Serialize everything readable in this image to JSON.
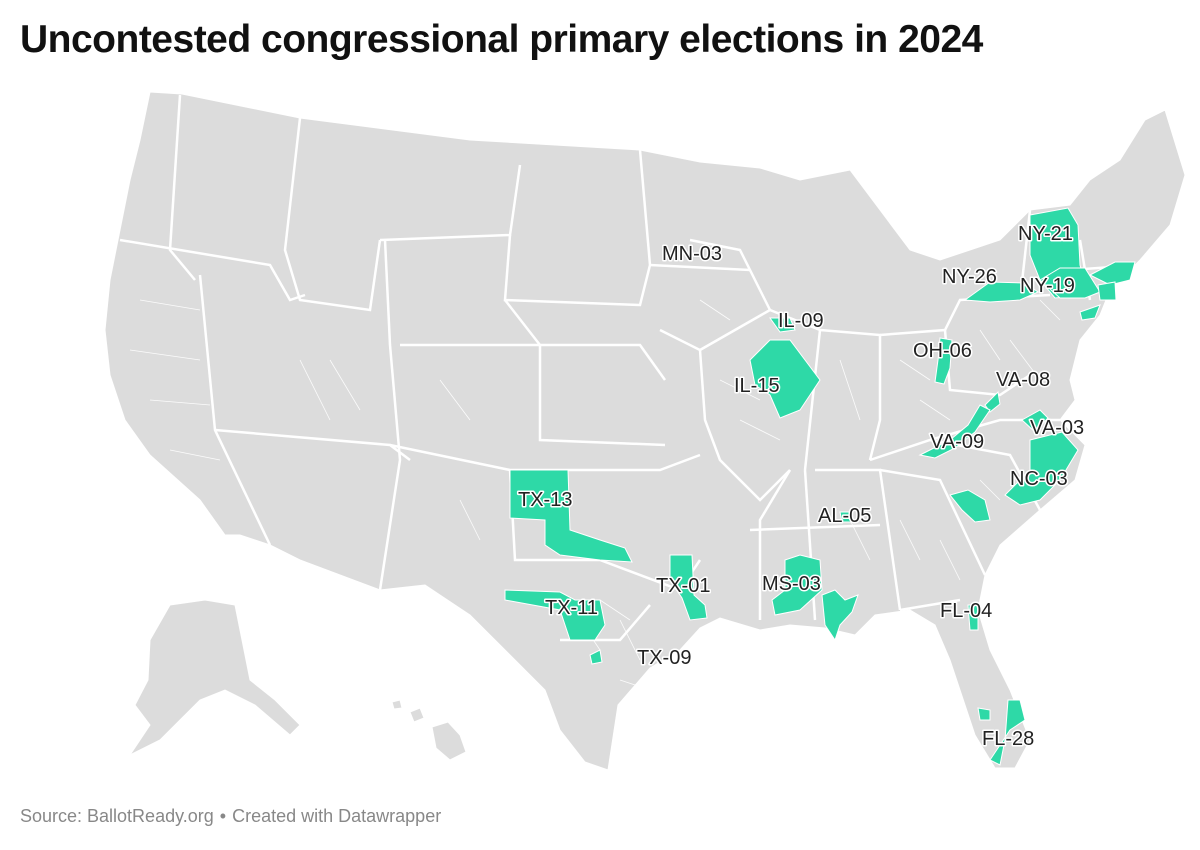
{
  "title": "Uncontested congressional primary elections in 2024",
  "footer": {
    "source": "Source: BallotReady.org",
    "separator": "•",
    "credit": "Created with Datawrapper"
  },
  "colors": {
    "land": "#dcdcdc",
    "border": "#ffffff",
    "highlight": "#2ed9a7"
  },
  "districts": [
    {
      "id": "MN-03",
      "label": "MN-03"
    },
    {
      "id": "IL-09",
      "label": "IL-09"
    },
    {
      "id": "IL-15",
      "label": "IL-15"
    },
    {
      "id": "OH-06",
      "label": "OH-06"
    },
    {
      "id": "NY-21",
      "label": "NY-21"
    },
    {
      "id": "NY-26",
      "label": "NY-26"
    },
    {
      "id": "NY-19",
      "label": "NY-19"
    },
    {
      "id": "VA-08",
      "label": "VA-08"
    },
    {
      "id": "VA-03",
      "label": "VA-03"
    },
    {
      "id": "VA-09",
      "label": "VA-09"
    },
    {
      "id": "NC-03",
      "label": "NC-03"
    },
    {
      "id": "AL-05",
      "label": "AL-05"
    },
    {
      "id": "TX-13",
      "label": "TX-13"
    },
    {
      "id": "TX-01",
      "label": "TX-01"
    },
    {
      "id": "MS-03",
      "label": "MS-03"
    },
    {
      "id": "TX-11",
      "label": "TX-11"
    },
    {
      "id": "TX-09",
      "label": "TX-09"
    },
    {
      "id": "FL-04",
      "label": "FL-04"
    },
    {
      "id": "FL-28",
      "label": "FL-28"
    }
  ]
}
